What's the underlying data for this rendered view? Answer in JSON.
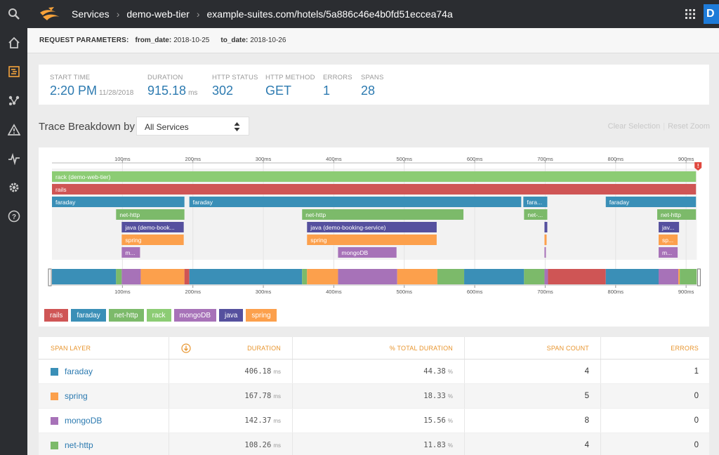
{
  "nav": {
    "breadcrumbs": [
      "Services",
      "demo-web-tier",
      "example-suites.com/hotels/5a886c46e4b0fd51eccea74a"
    ],
    "badge": "D",
    "rail_icons": [
      "search-icon",
      "home-icon",
      "traces-icon",
      "topology-icon",
      "alert-icon",
      "activity-icon",
      "settings-icon",
      "help-icon"
    ]
  },
  "params": {
    "label": "REQUEST PARAMETERS:",
    "from_key": "from_date:",
    "from_val": "2018-10-25",
    "to_key": "to_date:",
    "to_val": "2018-10-26"
  },
  "summary": {
    "start_label": "START TIME",
    "start_value": "2:20 PM",
    "start_date": "11/28/2018",
    "duration_label": "DURATION",
    "duration_value": "915.18",
    "duration_unit": "ms",
    "status_label": "HTTP STATUS",
    "status_value": "302",
    "method_label": "HTTP METHOD",
    "method_value": "GET",
    "errors_label": "ERRORS",
    "errors_value": "1",
    "spans_label": "SPANS",
    "spans_value": "28"
  },
  "breakdown": {
    "title": "Trace Breakdown by",
    "select_value": "All Services",
    "clear": "Clear Selection",
    "reset": "Reset Zoom"
  },
  "colors": {
    "rack": "#8ccc74",
    "rails": "#cf5555",
    "faraday": "#3a8fb7",
    "net-http": "#7cba6a",
    "java": "#55509e",
    "spring": "#fca04c",
    "mongoDB": "#a772b8",
    "error": "#e0483e"
  },
  "chart_data": {
    "type": "gantt",
    "x_unit": "ms",
    "x_range": [
      0,
      915.18
    ],
    "ticks": [
      "100ms",
      "200ms",
      "300ms",
      "400ms",
      "500ms",
      "600ms",
      "700ms",
      "800ms",
      "900ms"
    ],
    "tick_values": [
      100,
      200,
      300,
      400,
      500,
      600,
      700,
      800,
      900
    ],
    "spans": [
      {
        "label": "rack (demo-web-tier)",
        "layer": "rack",
        "level": 0,
        "start": 0,
        "end": 915
      },
      {
        "label": "rails",
        "layer": "rails",
        "level": 1,
        "start": 0,
        "end": 915
      },
      {
        "label": "faraday",
        "layer": "faraday",
        "level": 2,
        "start": 0,
        "end": 189
      },
      {
        "label": "faraday",
        "layer": "faraday",
        "level": 2,
        "start": 195,
        "end": 667
      },
      {
        "label": "fara...",
        "layer": "faraday",
        "level": 2,
        "start": 669,
        "end": 704
      },
      {
        "label": "faraday",
        "layer": "faraday",
        "level": 2,
        "start": 786,
        "end": 915
      },
      {
        "label": "net-http",
        "layer": "net-http",
        "level": 3,
        "start": 91,
        "end": 189
      },
      {
        "label": "net-http",
        "layer": "net-http",
        "level": 3,
        "start": 355,
        "end": 585
      },
      {
        "label": "net-...",
        "layer": "net-http",
        "level": 3,
        "start": 670,
        "end": 704
      },
      {
        "label": "net-http",
        "layer": "net-http",
        "level": 3,
        "start": 859,
        "end": 915
      },
      {
        "label": "java (demo-book...",
        "layer": "java",
        "level": 4,
        "start": 99,
        "end": 188
      },
      {
        "label": "java (demo-booking-service)",
        "layer": "java",
        "level": 4,
        "start": 362,
        "end": 547
      },
      {
        "label": "",
        "layer": "java",
        "level": 4,
        "start": 699,
        "end": 704
      },
      {
        "label": "jav...",
        "layer": "java",
        "level": 4,
        "start": 861,
        "end": 891
      },
      {
        "label": "spring",
        "layer": "spring",
        "level": 5,
        "start": 99,
        "end": 188
      },
      {
        "label": "spring",
        "layer": "spring",
        "level": 5,
        "start": 362,
        "end": 547
      },
      {
        "label": "",
        "layer": "spring",
        "level": 5,
        "start": 699,
        "end": 703
      },
      {
        "label": "sp...",
        "layer": "spring",
        "level": 5,
        "start": 861,
        "end": 889
      },
      {
        "label": "m...",
        "layer": "mongoDB",
        "level": 6,
        "start": 99,
        "end": 126
      },
      {
        "label": "mongoDB",
        "layer": "mongoDB",
        "level": 6,
        "start": 406,
        "end": 490
      },
      {
        "label": "",
        "layer": "mongoDB",
        "level": 6,
        "start": 699,
        "end": 702
      },
      {
        "label": "m...",
        "layer": "mongoDB",
        "level": 6,
        "start": 861,
        "end": 889
      }
    ],
    "overview": [
      {
        "layer": "faraday",
        "start": 0,
        "end": 91
      },
      {
        "layer": "net-http",
        "start": 91,
        "end": 99
      },
      {
        "layer": "mongoDB",
        "start": 99,
        "end": 126
      },
      {
        "layer": "spring",
        "start": 126,
        "end": 188
      },
      {
        "layer": "rails",
        "start": 188,
        "end": 195
      },
      {
        "layer": "faraday",
        "start": 195,
        "end": 355
      },
      {
        "layer": "net-http",
        "start": 355,
        "end": 362
      },
      {
        "layer": "spring",
        "start": 362,
        "end": 406
      },
      {
        "layer": "mongoDB",
        "start": 406,
        "end": 490
      },
      {
        "layer": "spring",
        "start": 490,
        "end": 547
      },
      {
        "layer": "net-http",
        "start": 547,
        "end": 585
      },
      {
        "layer": "faraday",
        "start": 585,
        "end": 670
      },
      {
        "layer": "net-http",
        "start": 670,
        "end": 699
      },
      {
        "layer": "mongoDB",
        "start": 699,
        "end": 704
      },
      {
        "layer": "rails",
        "start": 704,
        "end": 786
      },
      {
        "layer": "faraday",
        "start": 786,
        "end": 861
      },
      {
        "layer": "mongoDB",
        "start": 861,
        "end": 889
      },
      {
        "layer": "spring",
        "start": 889,
        "end": 891
      },
      {
        "layer": "net-http",
        "start": 891,
        "end": 915
      }
    ],
    "error_marker_at": 915
  },
  "legend": [
    {
      "label": "rails",
      "layer": "rails"
    },
    {
      "label": "faraday",
      "layer": "faraday"
    },
    {
      "label": "net-http",
      "layer": "net-http"
    },
    {
      "label": "rack",
      "layer": "rack"
    },
    {
      "label": "mongoDB",
      "layer": "mongoDB"
    },
    {
      "label": "java",
      "layer": "java"
    },
    {
      "label": "spring",
      "layer": "spring"
    }
  ],
  "table": {
    "headers": {
      "layer": "SPAN LAYER",
      "duration": "DURATION",
      "pct": "% TOTAL DURATION",
      "count": "SPAN COUNT",
      "errors": "ERRORS"
    },
    "rows": [
      {
        "layer": "faraday",
        "color": "#3a8fb7",
        "duration": "406.18",
        "duration_unit": "ms",
        "pct": "44.38",
        "pct_unit": "%",
        "count": "4",
        "errors": "1"
      },
      {
        "layer": "spring",
        "color": "#fca04c",
        "duration": "167.78",
        "duration_unit": "ms",
        "pct": "18.33",
        "pct_unit": "%",
        "count": "5",
        "errors": "0"
      },
      {
        "layer": "mongoDB",
        "color": "#a772b8",
        "duration": "142.37",
        "duration_unit": "ms",
        "pct": "15.56",
        "pct_unit": "%",
        "count": "8",
        "errors": "0"
      },
      {
        "layer": "net-http",
        "color": "#7cba6a",
        "duration": "108.26",
        "duration_unit": "ms",
        "pct": "11.83",
        "pct_unit": "%",
        "count": "4",
        "errors": "0"
      }
    ]
  }
}
